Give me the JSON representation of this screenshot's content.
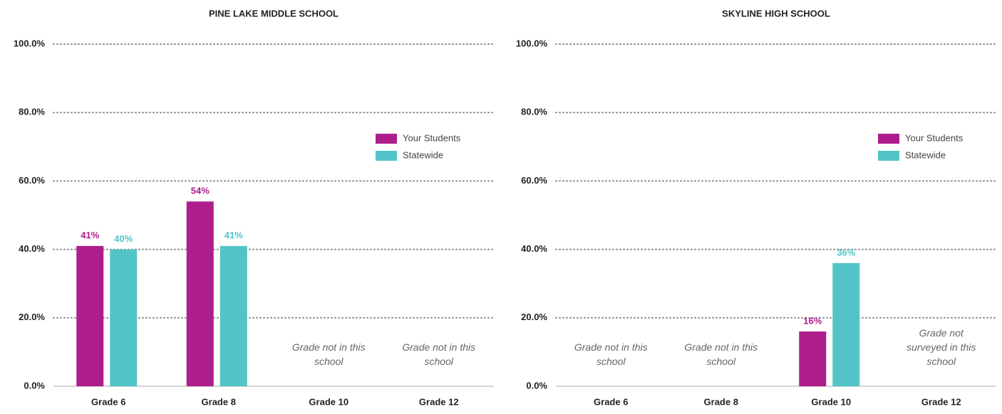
{
  "chart_data": [
    {
      "type": "bar",
      "title": "PINE LAKE MIDDLE SCHOOL",
      "categories": [
        "Grade 6",
        "Grade 8",
        "Grade 10",
        "Grade 12"
      ],
      "series": [
        {
          "name": "Your Students",
          "color": "#ad1e8c",
          "values": [
            41,
            54,
            null,
            null
          ],
          "value_labels": [
            "41%",
            "54%",
            null,
            null
          ]
        },
        {
          "name": "Statewide",
          "color": "#52c4c8",
          "values": [
            40,
            41,
            null,
            null
          ],
          "value_labels": [
            "40%",
            "41%",
            null,
            null
          ]
        }
      ],
      "annotations": [
        {
          "x": "Grade 10",
          "text": "Grade not in this school"
        },
        {
          "x": "Grade 12",
          "text": "Grade not in this school"
        }
      ],
      "ylim": [
        0,
        100
      ],
      "yticks": [
        {
          "value": 0,
          "label": "0.0%"
        },
        {
          "value": 20,
          "label": "20.0%"
        },
        {
          "value": 40,
          "label": "40.0%"
        },
        {
          "value": 60,
          "label": "60.0%"
        },
        {
          "value": 80,
          "label": "80.0%"
        },
        {
          "value": 100,
          "label": "100.0%"
        }
      ],
      "grid": true
    },
    {
      "type": "bar",
      "title": "SKYLINE HIGH SCHOOL",
      "categories": [
        "Grade 6",
        "Grade 8",
        "Grade 10",
        "Grade 12"
      ],
      "series": [
        {
          "name": "Your Students",
          "color": "#ad1e8c",
          "values": [
            null,
            null,
            16,
            null
          ],
          "value_labels": [
            null,
            null,
            "16%",
            null
          ]
        },
        {
          "name": "Statewide",
          "color": "#52c4c8",
          "values": [
            null,
            null,
            36,
            null
          ],
          "value_labels": [
            null,
            null,
            "36%",
            null
          ]
        }
      ],
      "annotations": [
        {
          "x": "Grade 6",
          "text": "Grade not in this school"
        },
        {
          "x": "Grade 8",
          "text": "Grade not in this school"
        },
        {
          "x": "Grade 12",
          "text": "Grade not surveyed in this school"
        }
      ],
      "ylim": [
        0,
        100
      ],
      "yticks": [
        {
          "value": 0,
          "label": "0.0%"
        },
        {
          "value": 20,
          "label": "20.0%"
        },
        {
          "value": 40,
          "label": "40.0%"
        },
        {
          "value": 60,
          "label": "60.0%"
        },
        {
          "value": 80,
          "label": "80.0%"
        },
        {
          "value": 100,
          "label": "100.0%"
        }
      ],
      "grid": true
    }
  ]
}
